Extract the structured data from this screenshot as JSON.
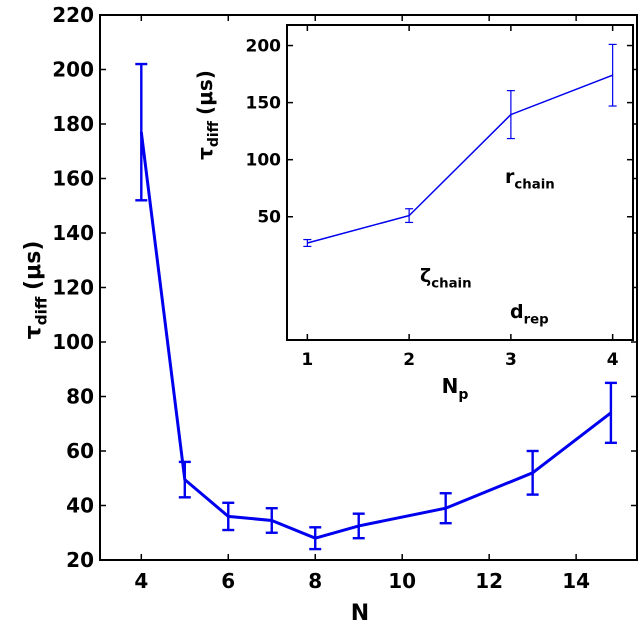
{
  "chart_data": [
    {
      "type": "line",
      "x": [
        4,
        5,
        6,
        7,
        8,
        9,
        11,
        13,
        14.8
      ],
      "series": [
        {
          "color": "#0000ee",
          "values": [
            177,
            49.5,
            36,
            34.5,
            28,
            32.5,
            39,
            52,
            74
          ],
          "errors": [
            25,
            6.5,
            5,
            4.5,
            4,
            4.5,
            5.5,
            8,
            11
          ]
        }
      ],
      "xlim": [
        3.05,
        15.4
      ],
      "ylim": [
        20,
        220
      ],
      "xticks": [
        4,
        6,
        8,
        10,
        12,
        14
      ],
      "yticks": [
        20,
        40,
        60,
        80,
        100,
        120,
        140,
        160,
        180,
        200,
        220
      ],
      "xlabel": "N",
      "ylabel": {
        "text": "τ",
        "sub": "diff",
        "rest": "(μs)"
      }
    },
    {
      "type": "line",
      "x": [
        1,
        2,
        3,
        4
      ],
      "series": [
        {
          "color": "#0000ee",
          "values": [
            27,
            51,
            139.5,
            174
          ],
          "errors": [
            3,
            6,
            21,
            27
          ]
        }
      ],
      "xlim": [
        0.8,
        4.2
      ],
      "ylim": [
        -58,
        218
      ],
      "xticks": [
        1,
        2,
        3,
        4
      ],
      "yticks": [
        50,
        100,
        150,
        200
      ],
      "xlabel": {
        "text": "N",
        "sub": "p"
      },
      "ylabel": {
        "text": "τ",
        "sub": "diff",
        "rest": "(μs)"
      },
      "annotations": [
        {
          "text": "r",
          "sub": "chain"
        },
        {
          "text": "ζ",
          "sub": "chain"
        },
        {
          "text": "d",
          "sub": "rep"
        }
      ]
    }
  ]
}
